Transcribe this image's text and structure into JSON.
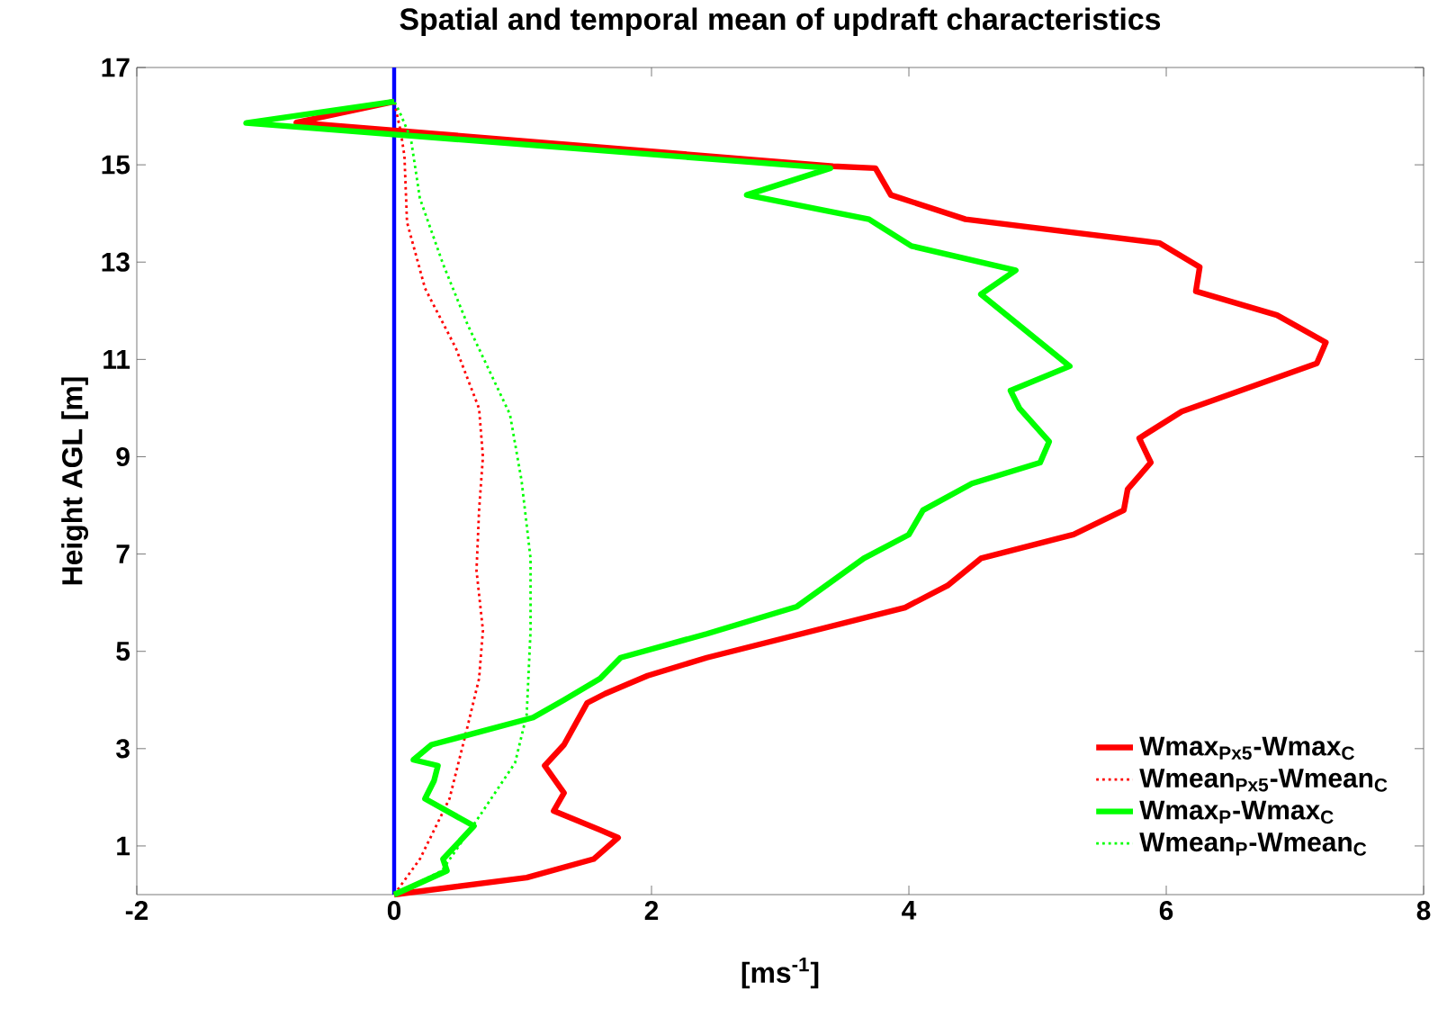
{
  "chart_data": {
    "type": "line",
    "title": "Spatial and temporal mean of updraft characteristics",
    "xlabel": "[ms$^{-1}$]",
    "ylabel": "Height AGL [m]",
    "xlim": [
      -2,
      8
    ],
    "ylim": [
      0,
      17
    ],
    "xticks": [
      -2,
      0,
      2,
      4,
      6,
      8
    ],
    "yticks": [
      1,
      3,
      5,
      7,
      9,
      11,
      13,
      15,
      17
    ],
    "grid": false,
    "legend": "bottom right",
    "ref_lines": [
      {
        "axis": "x",
        "value": 0,
        "color": "#0000ff"
      }
    ],
    "series": [
      {
        "name": "Wmax$_{Px5}$-Wmax$_{C}$",
        "color": "#ff0000",
        "line_style": "solid",
        "values": [
          0,
          0.35,
          0.73,
          1.17,
          1.33,
          1.72,
          2.09,
          2.65,
          3.08,
          3.94,
          4.13,
          4.5,
          4.87,
          5.9,
          6.35,
          6.91,
          7.4,
          7.9,
          8.33,
          8.88,
          9.38,
          9.93,
          10.92,
          11.35,
          11.91,
          12.4,
          12.9,
          13.39,
          13.88,
          14.38,
          14.93,
          14.97,
          15.87,
          16.3
        ],
        "x": [
          0,
          1.03,
          1.55,
          1.74,
          1.6,
          1.24,
          1.32,
          1.17,
          1.32,
          1.5,
          1.64,
          1.97,
          2.43,
          3.97,
          4.3,
          4.56,
          5.28,
          5.67,
          5.7,
          5.88,
          5.79,
          6.12,
          7.17,
          7.24,
          6.86,
          6.23,
          6.26,
          5.95,
          4.44,
          3.86,
          3.74,
          3.41,
          -0.76,
          0
        ]
      },
      {
        "name": "Wmean$_{Px5}$-Wmean$_{C}$",
        "color": "#ff0000",
        "line_style": "dotted",
        "values": [
          0,
          0.73,
          1.97,
          3.45,
          4.44,
          5.43,
          6.66,
          7.9,
          9.0,
          9.99,
          11.23,
          12.46,
          13.82,
          15.18,
          15.7,
          16.3
        ],
        "x": [
          0,
          0.2,
          0.43,
          0.57,
          0.66,
          0.69,
          0.64,
          0.66,
          0.69,
          0.66,
          0.48,
          0.24,
          0.1,
          0.08,
          0.05,
          0
        ]
      },
      {
        "name": "Wmax$_{P}$-Wmax$_{C}$",
        "color": "#00ff00",
        "line_style": "solid",
        "values": [
          0,
          0.49,
          0.73,
          1.41,
          1.97,
          2.34,
          2.65,
          2.77,
          3.08,
          3.64,
          4.0,
          4.44,
          4.87,
          5.36,
          5.92,
          6.91,
          7.4,
          7.9,
          8.45,
          8.88,
          9.31,
          9.99,
          10.36,
          10.86,
          12.34,
          12.83,
          13.33,
          13.88,
          14.38,
          14.93,
          15.86,
          16.3
        ],
        "x": [
          0,
          0.41,
          0.38,
          0.62,
          0.24,
          0.31,
          0.34,
          0.15,
          0.29,
          1.08,
          1.32,
          1.6,
          1.76,
          2.43,
          3.13,
          3.65,
          4.0,
          4.11,
          4.49,
          5.02,
          5.09,
          4.86,
          4.79,
          5.25,
          4.56,
          4.83,
          4.02,
          3.69,
          2.74,
          3.39,
          -1.15,
          0
        ]
      },
      {
        "name": "Wmean$_{P}$-Wmean$_{C}$",
        "color": "#00ff00",
        "line_style": "dotted",
        "values": [
          0,
          0.49,
          1.6,
          2.71,
          3.7,
          5.43,
          6.91,
          8.51,
          9.87,
          11.72,
          12.96,
          14.31,
          15.54,
          16.1,
          16.3
        ],
        "x": [
          0,
          0.37,
          0.66,
          0.94,
          1.03,
          1.06,
          1.06,
          0.99,
          0.9,
          0.57,
          0.38,
          0.2,
          0.13,
          0.04,
          0
        ]
      }
    ]
  }
}
